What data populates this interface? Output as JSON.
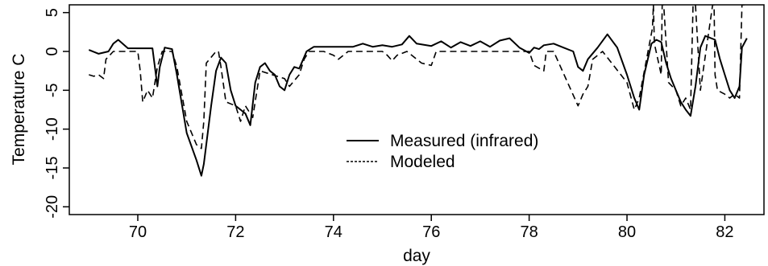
{
  "chart_data": {
    "type": "line",
    "xlabel": "day",
    "ylabel": "Temperature C",
    "xlim": [
      68.6,
      82.8
    ],
    "ylim": [
      -21,
      6
    ],
    "x_ticks": [
      70,
      72,
      74,
      76,
      78,
      80,
      82
    ],
    "x_tick_labels": [
      "70",
      "72",
      "74",
      "76",
      "78",
      "80",
      "82"
    ],
    "y_ticks": [
      5,
      0,
      -5,
      -10,
      -15,
      -20
    ],
    "y_tick_labels": [
      "5",
      "0",
      "-5",
      "-10",
      "-15",
      "-20"
    ],
    "grid": false,
    "legend_position": "center",
    "colors": {
      "measured": "#000000",
      "modeled": "#000000",
      "frame": "#000000"
    },
    "series": [
      {
        "name": "Measured (infrared)",
        "style": "solid",
        "x": [
          69.0,
          69.2,
          69.4,
          69.5,
          69.6,
          69.8,
          70.0,
          70.3,
          70.4,
          70.45,
          70.55,
          70.7,
          70.8,
          71.0,
          71.2,
          71.3,
          71.35,
          71.5,
          71.6,
          71.7,
          71.8,
          71.9,
          72.0,
          72.1,
          72.2,
          72.3,
          72.4,
          72.5,
          72.6,
          72.7,
          72.8,
          72.9,
          73.0,
          73.1,
          73.2,
          73.3,
          73.45,
          73.6,
          74.0,
          74.4,
          74.6,
          74.8,
          75.0,
          75.2,
          75.4,
          75.55,
          75.7,
          76.0,
          76.2,
          76.4,
          76.6,
          76.8,
          77.0,
          77.2,
          77.4,
          77.6,
          77.8,
          78.0,
          78.1,
          78.2,
          78.3,
          78.5,
          78.7,
          78.9,
          79.0,
          79.1,
          79.2,
          79.4,
          79.6,
          79.8,
          80.0,
          80.15,
          80.25,
          80.35,
          80.5,
          80.6,
          80.7,
          80.8,
          80.9,
          81.0,
          81.1,
          81.2,
          81.3,
          81.4,
          81.5,
          81.6,
          81.8,
          81.9,
          82.0,
          82.1,
          82.2,
          82.3,
          82.35,
          82.45
        ],
        "y": [
          0.2,
          -0.3,
          0.0,
          1.0,
          1.5,
          0.4,
          0.4,
          0.4,
          -4.5,
          -2.0,
          0.5,
          0.3,
          -3.0,
          -10.5,
          -14.0,
          -16.0,
          -14.5,
          -7.0,
          -2.5,
          -0.8,
          -1.5,
          -5.0,
          -7.0,
          -7.5,
          -8.0,
          -9.5,
          -4.0,
          -2.0,
          -1.5,
          -2.5,
          -3.0,
          -4.5,
          -5.0,
          -3.0,
          -2.0,
          -2.2,
          0.0,
          0.6,
          0.6,
          0.6,
          1.0,
          0.6,
          0.8,
          0.6,
          0.9,
          2.0,
          1.0,
          0.7,
          1.3,
          0.5,
          1.2,
          0.7,
          1.3,
          0.6,
          1.4,
          1.7,
          0.5,
          -0.2,
          0.5,
          0.3,
          0.8,
          1.0,
          0.5,
          0.0,
          -2.0,
          -2.5,
          -1.0,
          0.5,
          2.2,
          0.5,
          -3.0,
          -6.0,
          -7.5,
          -3.0,
          1.0,
          1.5,
          1.2,
          -1.5,
          -3.5,
          -5.0,
          -6.5,
          -7.5,
          -8.3,
          -4.5,
          0.5,
          2.0,
          1.5,
          -1.0,
          -3.0,
          -5.0,
          -6.0,
          -4.5,
          0.5,
          1.7
        ]
      },
      {
        "name": "Modeled",
        "style": "dashed",
        "x": [
          69.0,
          69.1,
          69.2,
          69.3,
          69.35,
          69.5,
          69.8,
          70.0,
          70.05,
          70.1,
          70.2,
          70.3,
          70.4,
          70.5,
          70.7,
          70.8,
          71.0,
          71.2,
          71.3,
          71.35,
          71.4,
          71.6,
          71.65,
          71.7,
          71.8,
          72.0,
          72.1,
          72.2,
          72.35,
          72.5,
          73.0,
          73.1,
          73.3,
          73.4,
          73.5,
          73.8,
          74.0,
          74.1,
          74.3,
          74.5,
          75.0,
          75.1,
          75.2,
          75.3,
          75.5,
          75.8,
          76.0,
          76.1,
          76.2,
          77.0,
          78.0,
          78.1,
          78.3,
          78.35,
          78.5,
          79.0,
          79.1,
          79.2,
          79.3,
          79.5,
          80.0,
          80.15,
          80.25,
          80.4,
          80.52,
          80.54,
          80.56,
          80.7,
          80.72,
          80.75,
          80.85,
          81.0,
          81.1,
          81.2,
          81.3,
          81.35,
          81.38,
          81.4,
          81.5,
          81.75,
          81.78,
          81.8,
          81.85,
          82.0,
          82.1,
          82.2,
          82.3,
          82.35,
          82.37,
          82.4
        ],
        "y": [
          -3.0,
          -3.2,
          -3.0,
          -3.5,
          -1.0,
          0.0,
          0.0,
          0.0,
          -2.5,
          -6.5,
          -5.0,
          -6.0,
          -2.0,
          0.0,
          0.0,
          -2.0,
          -9.0,
          -12.0,
          -12.5,
          -9.0,
          -1.5,
          0.0,
          0.0,
          -2.0,
          -6.5,
          -7.0,
          -9.0,
          -7.0,
          -8.5,
          -2.5,
          -3.5,
          -4.5,
          -3.0,
          -1.0,
          0.0,
          0.0,
          -0.5,
          -1.0,
          0.0,
          0.0,
          0.0,
          -0.5,
          -1.2,
          -0.5,
          0.0,
          -1.5,
          -1.8,
          0.0,
          0.0,
          0.0,
          0.0,
          -1.8,
          -2.5,
          0.0,
          0.0,
          -7.0,
          -5.5,
          -4.5,
          -1.0,
          0.0,
          -4.0,
          -7.5,
          -6.0,
          -1.0,
          3.0,
          6.0,
          1.0,
          -3.0,
          6.0,
          6.0,
          -4.0,
          -5.0,
          -7.0,
          -6.0,
          -7.5,
          6.0,
          6.0,
          6.0,
          -5.0,
          6.0,
          6.0,
          -3.0,
          -5.0,
          -5.5,
          -6.0,
          -5.5,
          -6.0,
          6.0,
          6.0,
          6.0
        ]
      }
    ]
  }
}
